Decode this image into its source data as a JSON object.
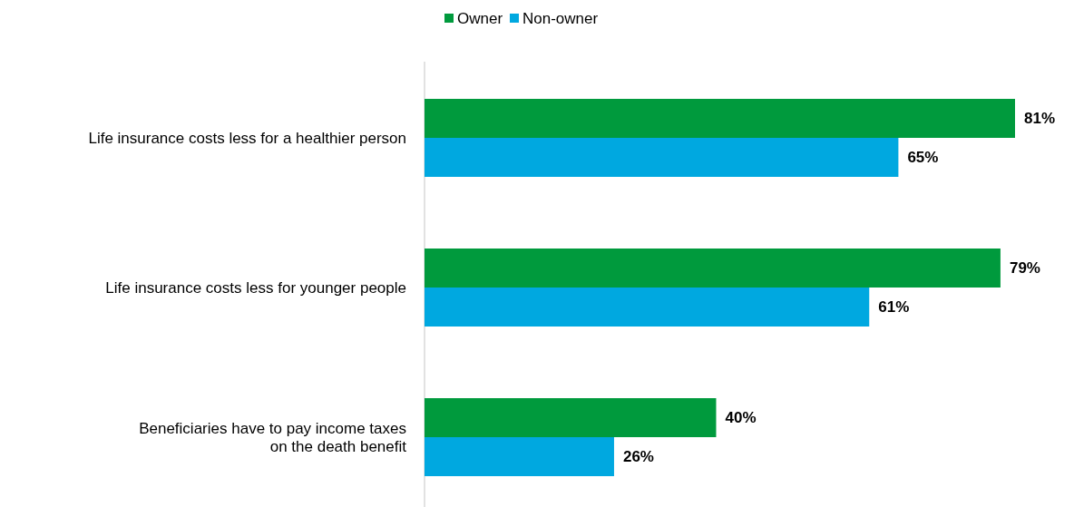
{
  "chart_data": {
    "type": "bar",
    "orientation": "horizontal",
    "legend": "top",
    "categories": [
      "Life insurance costs less for a healthier person",
      "Life insurance costs less for younger people",
      "Beneficiaries have to pay income taxes on the death benefit"
    ],
    "series": [
      {
        "name": "Owner",
        "color": "#009a3d",
        "values": [
          81,
          79,
          40
        ],
        "value_labels": [
          "81%",
          "79%",
          "40%"
        ]
      },
      {
        "name": "Non-owner",
        "color": "#00a8e0",
        "values": [
          65,
          61,
          26
        ],
        "value_labels": [
          "65%",
          "61%",
          "26%"
        ]
      }
    ]
  }
}
